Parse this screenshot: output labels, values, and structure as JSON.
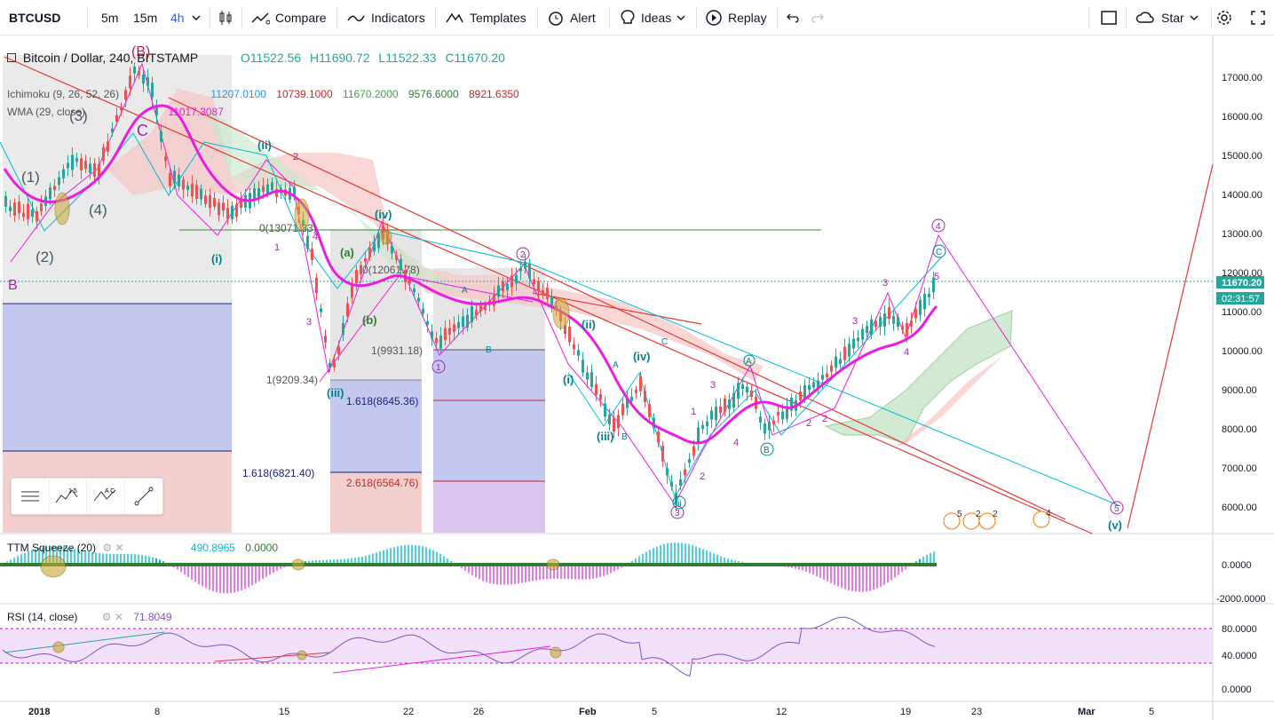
{
  "toolbar": {
    "symbol": "BTCUSD",
    "timeframes": [
      "5m",
      "15m",
      "4h"
    ],
    "active_timeframe": "4h",
    "compare": "Compare",
    "indicators": "Indicators",
    "templates": "Templates",
    "alert": "Alert",
    "ideas": "Ideas",
    "replay": "Replay",
    "star": "Star",
    "icons": [
      "chevron-down-icon",
      "candles-icon",
      "compare-icon",
      "indicators-icon",
      "templates-icon",
      "alert-clock-icon",
      "lightbulb-icon",
      "replay-icon",
      "undo-icon",
      "redo-icon",
      "fullscreen-box-icon",
      "cloud-icon",
      "gear-icon",
      "expand-icon"
    ]
  },
  "legend": {
    "title": "Bitcoin / Dollar, 240, BITSTAMP",
    "open": "O11522.56",
    "high": "H11690.72",
    "low": "L11522.33",
    "close": "C11670.20",
    "ichimoku_label": "Ichimoku (9, 26, 52, 26)",
    "ichimoku_values": [
      "11207.0100",
      "10739.1000",
      "11670.2000",
      "9576.6000",
      "8921.6350"
    ],
    "wma_label": "WMA (29, close)",
    "wma_value": "11017.3087"
  },
  "price_axis": {
    "ticks": [
      "17000.00",
      "16000.00",
      "15000.00",
      "14000.00",
      "13000.00",
      "12000.00",
      "11000.00",
      "10000.00",
      "9000.00",
      "8000.00",
      "7000.00",
      "6000.00"
    ],
    "last_price": "11670.20",
    "countdown": "02:31:57"
  },
  "time_axis": {
    "ticks": [
      "2018",
      "8",
      "15",
      "22",
      "26",
      "Feb",
      "5",
      "12",
      "19",
      "23",
      "Mar",
      "5"
    ]
  },
  "ttm": {
    "label": "TTM Squeeze (20)",
    "values": [
      "490.8965",
      "0.0000"
    ],
    "ticks": [
      "0.0000",
      "-2000.0000"
    ]
  },
  "rsi": {
    "label": "RSI (14, close)",
    "value": "71.8049",
    "ticks": [
      "80.0000",
      "40.0000",
      "0.0000"
    ]
  },
  "annotations": {
    "fib": [
      "0(13071.33)",
      "0(12061.78)",
      "1(9931.18)",
      "1(9209.34)",
      "1.618(8645.36)",
      "1.618(6821.40)",
      "2.618(6564.76)"
    ],
    "waves_bottom": [
      "(iii)",
      "(i)",
      "(ii)",
      "(iv)",
      "(v)",
      "(a)",
      "(b)"
    ],
    "big_labels": [
      "(B)",
      "C",
      "B",
      "(1)",
      "(2)",
      "(3)",
      "(4)"
    ]
  },
  "colors": {
    "up": "#26a69a",
    "down": "#ef5350",
    "wma": "#e91ee0",
    "cyan": "#00bcd4",
    "red_line": "#e53935"
  }
}
